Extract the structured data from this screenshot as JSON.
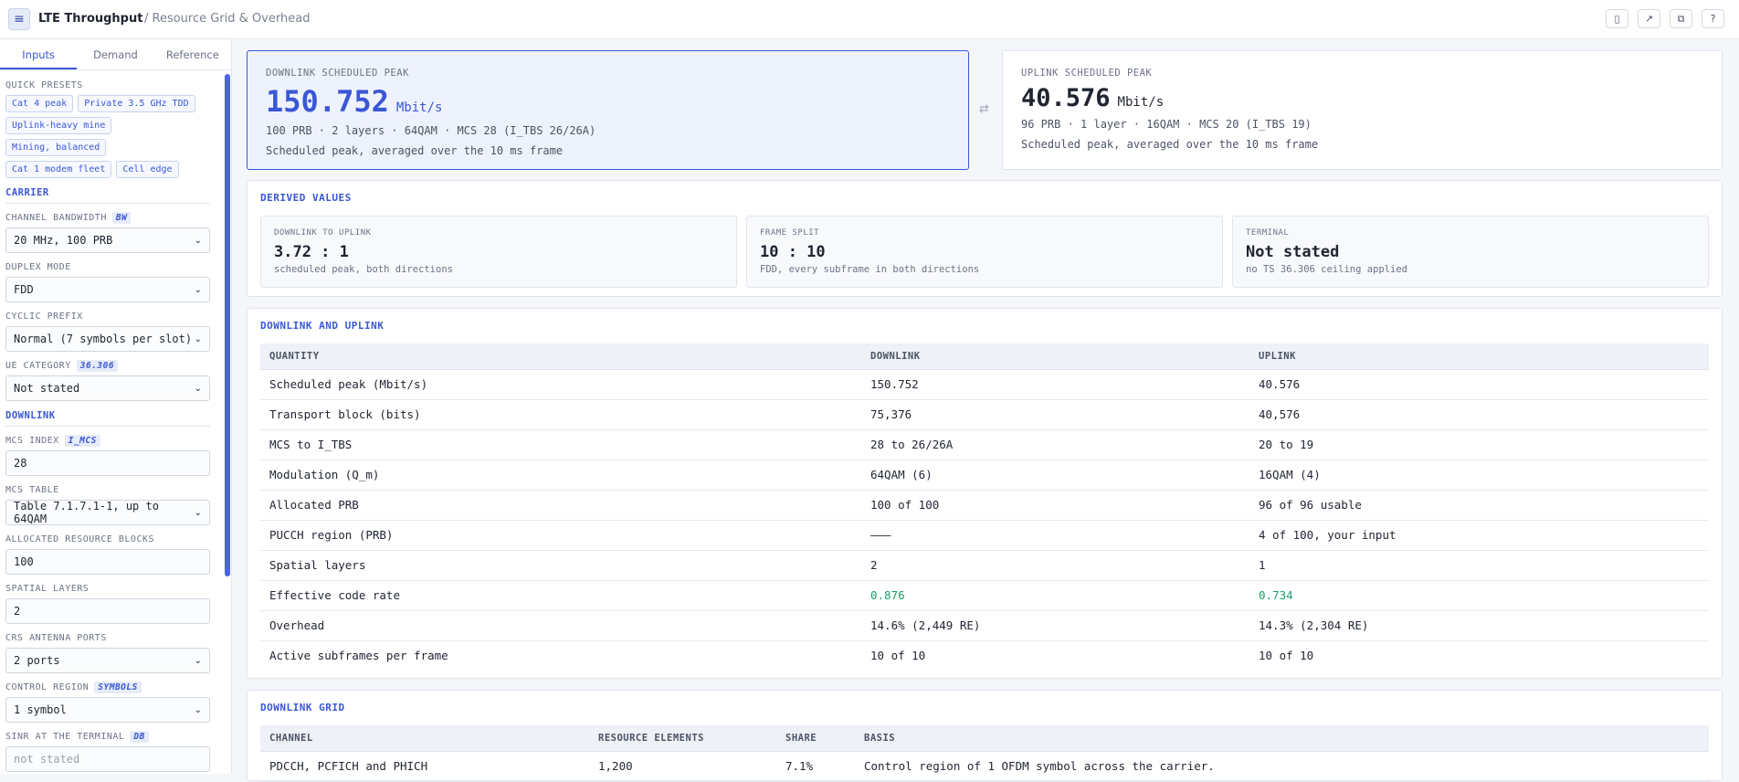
{
  "header": {
    "title": "LTE Throughput",
    "breadcrumb": "/ Resource Grid & Overhead",
    "icons": [
      "bookmark-icon",
      "external-link-icon",
      "copy-icon",
      "help-icon"
    ],
    "icon_glyphs": [
      "▯",
      "↗",
      "⧉",
      "?"
    ]
  },
  "sidebar": {
    "tabs": [
      "Inputs",
      "Demand",
      "Reference"
    ],
    "presets_label": "QUICK PRESETS",
    "presets": [
      "Cat 4 peak",
      "Private 3.5 GHz TDD",
      "Uplink-heavy mine",
      "Mining, balanced",
      "Cat 1 modem fleet",
      "Cell edge"
    ],
    "carrier_heading": "CARRIER",
    "channel_bandwidth": {
      "label": "CHANNEL BANDWIDTH",
      "tag": "BW",
      "value": "20 MHz, 100 PRB"
    },
    "duplex_mode": {
      "label": "DUPLEX MODE",
      "value": "FDD"
    },
    "cyclic_prefix": {
      "label": "CYCLIC PREFIX",
      "value": "Normal (7 symbols per slot)"
    },
    "ue_category": {
      "label": "UE CATEGORY",
      "tag": "36.306",
      "value": "Not stated"
    },
    "downlink_heading": "DOWNLINK",
    "mcs_index": {
      "label": "MCS INDEX",
      "tag": "I_MCS",
      "value": "28"
    },
    "mcs_table": {
      "label": "MCS TABLE",
      "value": "Table 7.1.7.1-1, up to 64QAM"
    },
    "allocated_rb": {
      "label": "ALLOCATED RESOURCE BLOCKS",
      "value": "100"
    },
    "spatial_layers": {
      "label": "SPATIAL LAYERS",
      "value": "2"
    },
    "crs_ports": {
      "label": "CRS ANTENNA PORTS",
      "value": "2 ports"
    },
    "control_region": {
      "label": "CONTROL REGION",
      "tag": "SYMBOLS",
      "value": "1 symbol"
    },
    "sinr": {
      "label": "SINR AT THE TERMINAL",
      "tag": "DB",
      "placeholder": "not stated"
    }
  },
  "downlink_peak": {
    "label": "DOWNLINK SCHEDULED PEAK",
    "value": "150.752",
    "unit": "Mbit/s",
    "meta": "100 PRB · 2 layers · 64QAM · MCS 28 (I_TBS 26/26A)",
    "note": "Scheduled peak, averaged over the 10 ms frame"
  },
  "uplink_peak": {
    "label": "UPLINK SCHEDULED PEAK",
    "value": "40.576",
    "unit": "Mbit/s",
    "meta": "96 PRB · 1 layer · 16QAM · MCS 20 (I_TBS 19)",
    "note": "Scheduled peak, averaged over the 10 ms frame"
  },
  "derived": {
    "title": "DERIVED VALUES",
    "cards": [
      {
        "label": "DOWNLINK TO UPLINK",
        "value": "3.72 : 1",
        "note": "scheduled peak, both directions"
      },
      {
        "label": "FRAME SPLIT",
        "value": "10 : 10",
        "note": "FDD, every subframe in both directions"
      },
      {
        "label": "TERMINAL",
        "value": "Not stated",
        "note": "no TS 36.306 ceiling applied"
      }
    ]
  },
  "dlul": {
    "title": "DOWNLINK AND UPLINK",
    "columns": [
      "QUANTITY",
      "DOWNLINK",
      "UPLINK"
    ],
    "rows": [
      [
        "Scheduled peak (Mbit/s)",
        "150.752",
        "40.576"
      ],
      [
        "Transport block (bits)",
        "75,376",
        "40,576"
      ],
      [
        "MCS to I_TBS",
        "28 to 26/26A",
        "20 to 19"
      ],
      [
        "Modulation (Q_m)",
        "64QAM (6)",
        "16QAM (4)"
      ],
      [
        "Allocated PRB",
        "100 of 100",
        "96 of 96 usable"
      ],
      [
        "PUCCH region (PRB)",
        "———",
        "4 of 100, your input"
      ],
      [
        "Spatial layers",
        "2",
        "1"
      ],
      [
        "Effective code rate",
        "0.876",
        "0.734"
      ],
      [
        "Overhead",
        "14.6% (2,449 RE)",
        "14.3% (2,304 RE)"
      ],
      [
        "Active subframes per frame",
        "10 of 10",
        "10 of 10"
      ]
    ]
  },
  "grid": {
    "title": "DOWNLINK GRID",
    "columns": [
      "CHANNEL",
      "RESOURCE ELEMENTS",
      "SHARE",
      "BASIS"
    ],
    "rows": [
      [
        "PDCCH, PCFICH and PHICH",
        "1,200",
        "7.1%",
        "Control region of 1 OFDM symbol across the carrier."
      ]
    ]
  }
}
